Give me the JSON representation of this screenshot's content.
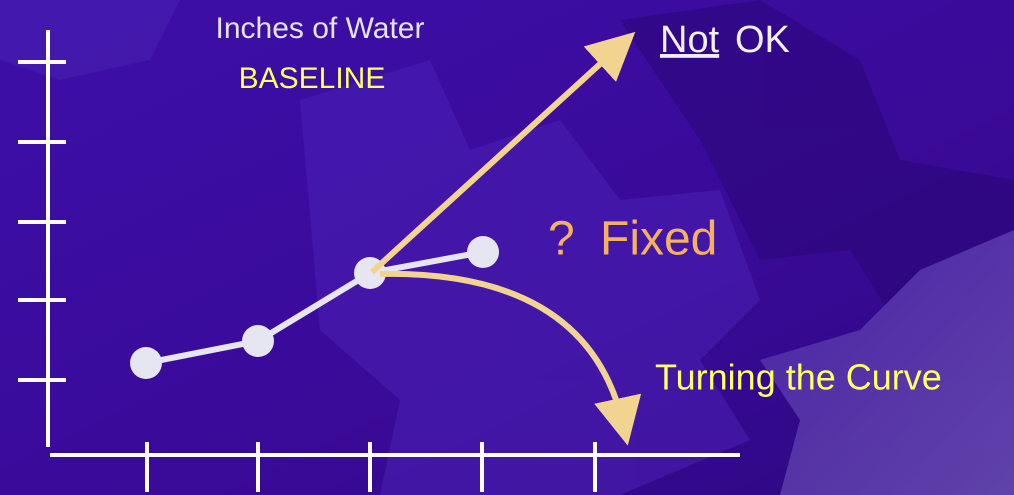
{
  "header": {
    "title": "Inches of Water",
    "subtitle": "BASELINE"
  },
  "labels": {
    "not": "Not",
    "ok": "OK",
    "question": "?",
    "fixed": "Fixed",
    "turning": "Turning the Curve"
  }
}
